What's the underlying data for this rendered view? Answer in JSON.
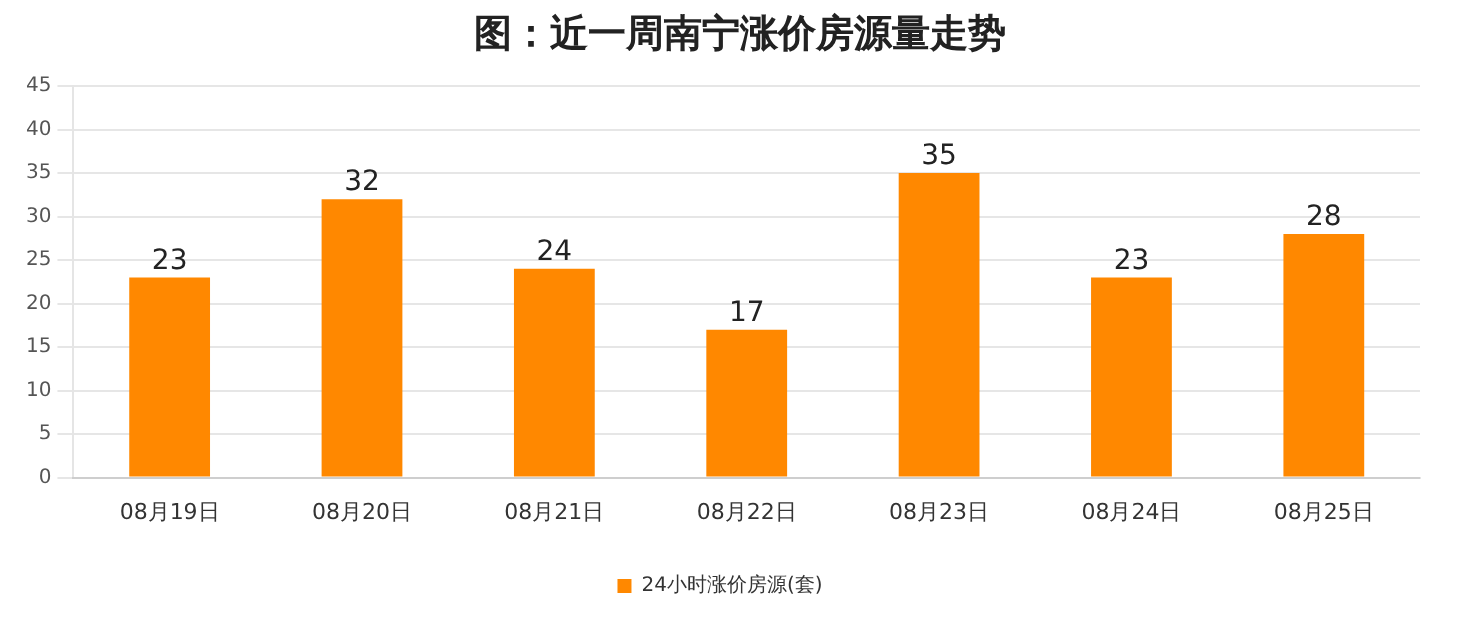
{
  "chart_data": {
    "type": "bar",
    "title": "图：近一周南宁涨价房源量走势",
    "categories": [
      "08月19日",
      "08月20日",
      "08月21日",
      "08月22日",
      "08月23日",
      "08月24日",
      "08月25日"
    ],
    "series": [
      {
        "name": "24小时涨价房源(套)",
        "color": "#ff8800",
        "values": [
          23,
          32,
          24,
          17,
          35,
          23,
          28
        ]
      }
    ],
    "ylim": [
      0,
      45
    ],
    "yticks": [
      0,
      5,
      10,
      15,
      20,
      25,
      30,
      35,
      40,
      45
    ],
    "grid": "y",
    "legend": "bottom",
    "data_labels": true
  }
}
